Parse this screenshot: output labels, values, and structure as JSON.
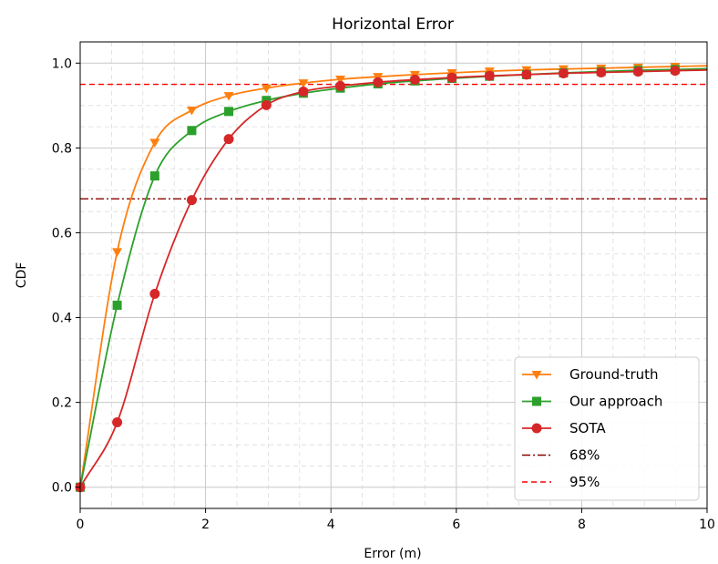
{
  "chart_data": {
    "type": "line",
    "title": "Horizontal Error",
    "xlabel": "Error (m)",
    "ylabel": "CDF",
    "xlim": [
      0,
      10
    ],
    "ylim": [
      -0.05,
      1.05
    ],
    "xticks": [
      0,
      2,
      4,
      6,
      8,
      10
    ],
    "yticks": [
      0.0,
      0.2,
      0.4,
      0.6,
      0.8,
      1.0
    ],
    "xtick_labels": [
      "0",
      "2",
      "4",
      "6",
      "8",
      "10"
    ],
    "ytick_labels": [
      "0.0",
      "0.2",
      "0.4",
      "0.6",
      "0.8",
      "1.0"
    ],
    "grid": true,
    "minor_grid": true,
    "legend_position": "bottom-right",
    "marker_x": [
      0,
      0.59,
      1.19,
      1.78,
      2.37,
      2.97,
      3.56,
      4.15,
      4.75,
      5.34,
      5.93,
      6.53,
      7.12,
      7.71,
      8.31,
      8.9,
      9.49
    ],
    "series": [
      {
        "name": "Ground-truth",
        "color": "#ff7f0e",
        "marker": "triangle-down",
        "values": [
          0.0,
          0.555,
          0.813,
          0.889,
          0.923,
          0.941,
          0.953,
          0.962,
          0.968,
          0.973,
          0.977,
          0.981,
          0.984,
          0.986,
          0.988,
          0.99,
          0.992
        ]
      },
      {
        "name": "Our approach",
        "color": "#2ca02c",
        "marker": "square",
        "values": [
          0.0,
          0.429,
          0.734,
          0.841,
          0.886,
          0.912,
          0.929,
          0.941,
          0.951,
          0.958,
          0.964,
          0.969,
          0.973,
          0.977,
          0.98,
          0.983,
          0.985
        ]
      },
      {
        "name": "SOTA",
        "color": "#d62728",
        "marker": "circle",
        "values": [
          0.0,
          0.153,
          0.456,
          0.677,
          0.821,
          0.901,
          0.933,
          0.946,
          0.955,
          0.961,
          0.966,
          0.97,
          0.973,
          0.976,
          0.978,
          0.98,
          0.982
        ]
      }
    ],
    "reference_lines": [
      {
        "name": "68%",
        "y": 0.68,
        "color": "#8b0000",
        "style": "dashdot"
      },
      {
        "name": "95%",
        "y": 0.95,
        "color": "#ff0000",
        "style": "dashed"
      }
    ]
  }
}
